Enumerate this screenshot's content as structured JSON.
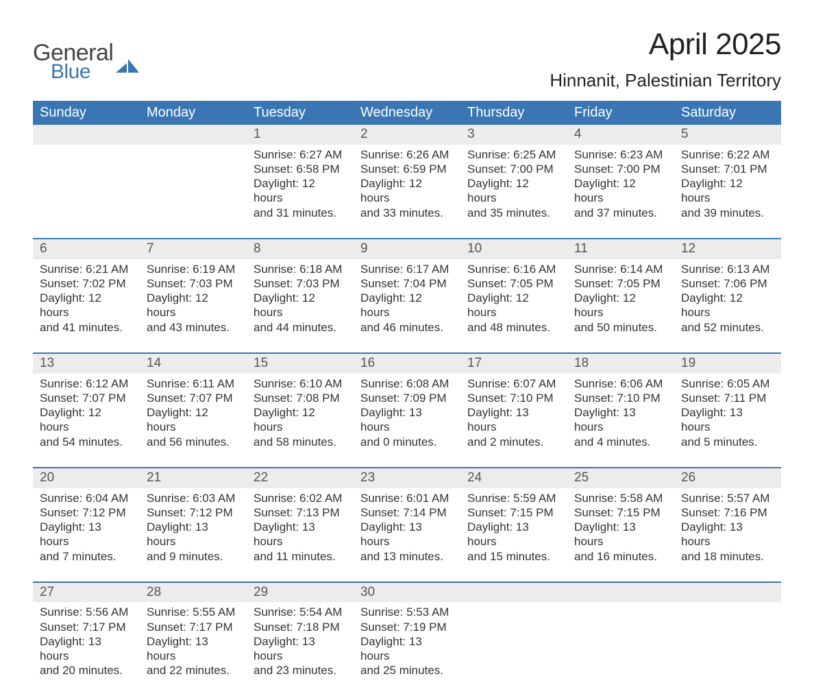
{
  "logo": {
    "word1": "General",
    "word2": "Blue"
  },
  "title": {
    "month": "April 2025",
    "location": "Hinnanit, Palestinian Territory"
  },
  "style": {
    "header_bg": "#3a76b4",
    "header_fg": "#ffffff",
    "daynum_bg": "#ececec",
    "row_border": "#3a76b4",
    "logo_blue": "#3a76b4",
    "page_bg": "#ffffff",
    "text_color": "#333",
    "title_fontsize": 44,
    "location_fontsize": 26,
    "header_fontsize": 20,
    "body_fontsize": 17
  },
  "columns": [
    "Sunday",
    "Monday",
    "Tuesday",
    "Wednesday",
    "Thursday",
    "Friday",
    "Saturday"
  ],
  "weeks": [
    [
      {
        "day": "",
        "lines": []
      },
      {
        "day": "",
        "lines": []
      },
      {
        "day": "1",
        "lines": [
          "Sunrise: 6:27 AM",
          "Sunset: 6:58 PM",
          "Daylight: 12 hours",
          "and 31 minutes."
        ]
      },
      {
        "day": "2",
        "lines": [
          "Sunrise: 6:26 AM",
          "Sunset: 6:59 PM",
          "Daylight: 12 hours",
          "and 33 minutes."
        ]
      },
      {
        "day": "3",
        "lines": [
          "Sunrise: 6:25 AM",
          "Sunset: 7:00 PM",
          "Daylight: 12 hours",
          "and 35 minutes."
        ]
      },
      {
        "day": "4",
        "lines": [
          "Sunrise: 6:23 AM",
          "Sunset: 7:00 PM",
          "Daylight: 12 hours",
          "and 37 minutes."
        ]
      },
      {
        "day": "5",
        "lines": [
          "Sunrise: 6:22 AM",
          "Sunset: 7:01 PM",
          "Daylight: 12 hours",
          "and 39 minutes."
        ]
      }
    ],
    [
      {
        "day": "6",
        "lines": [
          "Sunrise: 6:21 AM",
          "Sunset: 7:02 PM",
          "Daylight: 12 hours",
          "and 41 minutes."
        ]
      },
      {
        "day": "7",
        "lines": [
          "Sunrise: 6:19 AM",
          "Sunset: 7:03 PM",
          "Daylight: 12 hours",
          "and 43 minutes."
        ]
      },
      {
        "day": "8",
        "lines": [
          "Sunrise: 6:18 AM",
          "Sunset: 7:03 PM",
          "Daylight: 12 hours",
          "and 44 minutes."
        ]
      },
      {
        "day": "9",
        "lines": [
          "Sunrise: 6:17 AM",
          "Sunset: 7:04 PM",
          "Daylight: 12 hours",
          "and 46 minutes."
        ]
      },
      {
        "day": "10",
        "lines": [
          "Sunrise: 6:16 AM",
          "Sunset: 7:05 PM",
          "Daylight: 12 hours",
          "and 48 minutes."
        ]
      },
      {
        "day": "11",
        "lines": [
          "Sunrise: 6:14 AM",
          "Sunset: 7:05 PM",
          "Daylight: 12 hours",
          "and 50 minutes."
        ]
      },
      {
        "day": "12",
        "lines": [
          "Sunrise: 6:13 AM",
          "Sunset: 7:06 PM",
          "Daylight: 12 hours",
          "and 52 minutes."
        ]
      }
    ],
    [
      {
        "day": "13",
        "lines": [
          "Sunrise: 6:12 AM",
          "Sunset: 7:07 PM",
          "Daylight: 12 hours",
          "and 54 minutes."
        ]
      },
      {
        "day": "14",
        "lines": [
          "Sunrise: 6:11 AM",
          "Sunset: 7:07 PM",
          "Daylight: 12 hours",
          "and 56 minutes."
        ]
      },
      {
        "day": "15",
        "lines": [
          "Sunrise: 6:10 AM",
          "Sunset: 7:08 PM",
          "Daylight: 12 hours",
          "and 58 minutes."
        ]
      },
      {
        "day": "16",
        "lines": [
          "Sunrise: 6:08 AM",
          "Sunset: 7:09 PM",
          "Daylight: 13 hours",
          "and 0 minutes."
        ]
      },
      {
        "day": "17",
        "lines": [
          "Sunrise: 6:07 AM",
          "Sunset: 7:10 PM",
          "Daylight: 13 hours",
          "and 2 minutes."
        ]
      },
      {
        "day": "18",
        "lines": [
          "Sunrise: 6:06 AM",
          "Sunset: 7:10 PM",
          "Daylight: 13 hours",
          "and 4 minutes."
        ]
      },
      {
        "day": "19",
        "lines": [
          "Sunrise: 6:05 AM",
          "Sunset: 7:11 PM",
          "Daylight: 13 hours",
          "and 5 minutes."
        ]
      }
    ],
    [
      {
        "day": "20",
        "lines": [
          "Sunrise: 6:04 AM",
          "Sunset: 7:12 PM",
          "Daylight: 13 hours",
          "and 7 minutes."
        ]
      },
      {
        "day": "21",
        "lines": [
          "Sunrise: 6:03 AM",
          "Sunset: 7:12 PM",
          "Daylight: 13 hours",
          "and 9 minutes."
        ]
      },
      {
        "day": "22",
        "lines": [
          "Sunrise: 6:02 AM",
          "Sunset: 7:13 PM",
          "Daylight: 13 hours",
          "and 11 minutes."
        ]
      },
      {
        "day": "23",
        "lines": [
          "Sunrise: 6:01 AM",
          "Sunset: 7:14 PM",
          "Daylight: 13 hours",
          "and 13 minutes."
        ]
      },
      {
        "day": "24",
        "lines": [
          "Sunrise: 5:59 AM",
          "Sunset: 7:15 PM",
          "Daylight: 13 hours",
          "and 15 minutes."
        ]
      },
      {
        "day": "25",
        "lines": [
          "Sunrise: 5:58 AM",
          "Sunset: 7:15 PM",
          "Daylight: 13 hours",
          "and 16 minutes."
        ]
      },
      {
        "day": "26",
        "lines": [
          "Sunrise: 5:57 AM",
          "Sunset: 7:16 PM",
          "Daylight: 13 hours",
          "and 18 minutes."
        ]
      }
    ],
    [
      {
        "day": "27",
        "lines": [
          "Sunrise: 5:56 AM",
          "Sunset: 7:17 PM",
          "Daylight: 13 hours",
          "and 20 minutes."
        ]
      },
      {
        "day": "28",
        "lines": [
          "Sunrise: 5:55 AM",
          "Sunset: 7:17 PM",
          "Daylight: 13 hours",
          "and 22 minutes."
        ]
      },
      {
        "day": "29",
        "lines": [
          "Sunrise: 5:54 AM",
          "Sunset: 7:18 PM",
          "Daylight: 13 hours",
          "and 23 minutes."
        ]
      },
      {
        "day": "30",
        "lines": [
          "Sunrise: 5:53 AM",
          "Sunset: 7:19 PM",
          "Daylight: 13 hours",
          "and 25 minutes."
        ]
      },
      {
        "day": "",
        "lines": []
      },
      {
        "day": "",
        "lines": []
      },
      {
        "day": "",
        "lines": []
      }
    ]
  ]
}
